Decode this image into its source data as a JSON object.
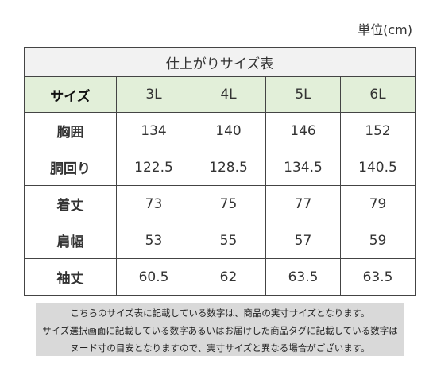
{
  "unit_label": "単位(cm)",
  "table": {
    "title": "仕上がりサイズ表",
    "header_label": "サイズ",
    "sizes": [
      "3L",
      "4L",
      "5L",
      "6L"
    ],
    "rows": [
      {
        "label": "胸囲",
        "values": [
          "134",
          "140",
          "146",
          "152"
        ]
      },
      {
        "label": "胴回り",
        "values": [
          "122.5",
          "128.5",
          "134.5",
          "140.5"
        ]
      },
      {
        "label": "着丈",
        "values": [
          "73",
          "75",
          "77",
          "79"
        ]
      },
      {
        "label": "肩幅",
        "values": [
          "53",
          "55",
          "57",
          "59"
        ]
      },
      {
        "label": "袖丈",
        "values": [
          "60.5",
          "62",
          "63.5",
          "63.5"
        ]
      }
    ]
  },
  "note": {
    "lines": [
      "こちらのサイズ表に記載している数字は、商品の実寸サイズとなります。",
      "サイズ選択画面に記載している数字あるいはお届けした商品タグに記載している数字は",
      "ヌード寸の目安となりますので、実寸サイズと異なる場合がございます。"
    ]
  },
  "colors": {
    "header_bg": "#e2efd9",
    "title_bg": "#f2f2f2",
    "note_bg": "#d9d9d9",
    "border": "#444444"
  }
}
